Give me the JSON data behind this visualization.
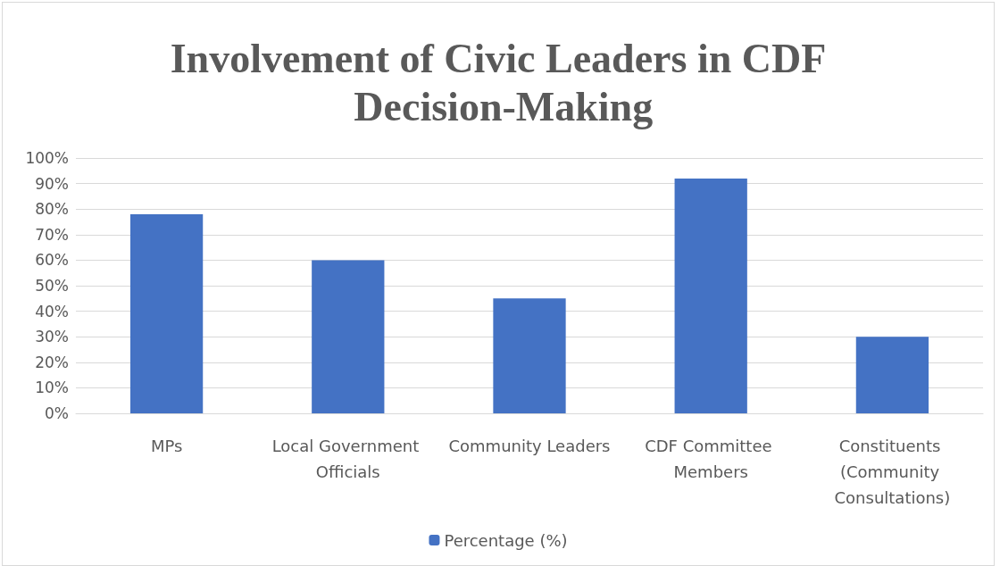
{
  "chart_data": {
    "type": "bar",
    "title": "Involvement of Civic Leaders in CDF Decision-Making",
    "categories": [
      "MPs",
      "Local Government Officials",
      "Community Leaders",
      "CDF Committee Members",
      "Constituents (Community Consultations)"
    ],
    "series": [
      {
        "name": "Percentage (%)",
        "color": "#4472c4",
        "values": [
          78,
          60,
          45,
          92,
          30
        ]
      }
    ],
    "ylim": [
      0,
      100
    ],
    "yticks": [
      {
        "value": 0,
        "label": "0%"
      },
      {
        "value": 10,
        "label": "10%"
      },
      {
        "value": 20,
        "label": "20%"
      },
      {
        "value": 30,
        "label": "30%"
      },
      {
        "value": 40,
        "label": "40%"
      },
      {
        "value": 50,
        "label": "50%"
      },
      {
        "value": 60,
        "label": "60%"
      },
      {
        "value": 70,
        "label": "70%"
      },
      {
        "value": 80,
        "label": "80%"
      },
      {
        "value": 90,
        "label": "90%"
      },
      {
        "value": 100,
        "label": "100%"
      }
    ],
    "grid": "y",
    "legend": "bottom"
  }
}
